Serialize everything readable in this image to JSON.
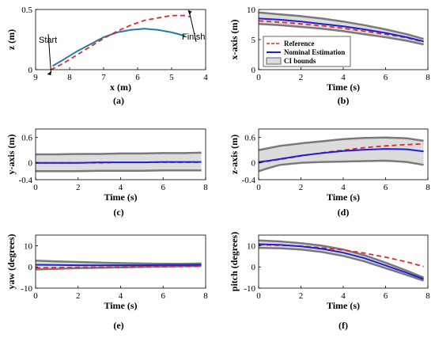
{
  "colors": {
    "reference": "#e8242c",
    "nominal": "#1f1fd6",
    "trajectory": "#1a7fa6",
    "ci_fill": "#dcdcdc",
    "ci_edge": "#7a7a7a"
  },
  "chart_data": [
    {
      "id": "a",
      "type": "line",
      "caption": "(a)",
      "xlabel": "x (m)",
      "ylabel": "z (m)",
      "xlim": [
        9,
        4
      ],
      "ylim": [
        0,
        0.5
      ],
      "xticks": [
        9,
        8,
        7,
        6,
        5,
        4
      ],
      "yticks": [
        0,
        0.5
      ],
      "annotations": [
        {
          "text": "Start",
          "x": 8.5,
          "y": 0.0
        },
        {
          "text": "Finish",
          "x": 4.5,
          "y": 0.45
        }
      ],
      "series": [
        {
          "role": "trajectory",
          "style": "solid",
          "x": [
            8.5,
            8.2,
            7.8,
            7.4,
            7.0,
            6.6,
            6.2,
            5.8,
            5.4,
            5.0,
            4.6
          ],
          "y": [
            0.03,
            0.08,
            0.15,
            0.21,
            0.27,
            0.31,
            0.33,
            0.34,
            0.33,
            0.31,
            0.28
          ]
        },
        {
          "role": "reference",
          "style": "dashed",
          "x": [
            8.55,
            8.2,
            7.8,
            7.4,
            7.0,
            6.6,
            6.2,
            5.8,
            5.4,
            5.0,
            4.6,
            4.45
          ],
          "y": [
            0.0,
            0.05,
            0.12,
            0.19,
            0.26,
            0.32,
            0.37,
            0.41,
            0.43,
            0.45,
            0.45,
            0.44
          ]
        }
      ]
    },
    {
      "id": "b",
      "type": "line",
      "caption": "(b)",
      "xlabel": "Time (s)",
      "ylabel": "x-axis (m)",
      "xlim": [
        0,
        8
      ],
      "ylim": [
        0,
        10
      ],
      "xticks": [
        0,
        2,
        4,
        6,
        8
      ],
      "yticks": [
        0,
        5,
        10
      ],
      "legend": {
        "placement": "bottom-left",
        "entries": [
          "Reference",
          "Nominal Estimation",
          "CI bounds"
        ]
      },
      "x": [
        0,
        1,
        2,
        3,
        4,
        5,
        6,
        7,
        7.8
      ],
      "series": [
        {
          "name": "CI bounds",
          "role": "ci",
          "upper": [
            9.5,
            9.2,
            8.9,
            8.5,
            8.0,
            7.4,
            6.7,
            5.9,
            5.1
          ],
          "lower": [
            7.6,
            7.4,
            7.1,
            6.8,
            6.4,
            5.9,
            5.4,
            4.8,
            4.2
          ]
        },
        {
          "name": "Reference",
          "role": "reference",
          "style": "dashed",
          "values": [
            8.1,
            7.9,
            7.6,
            7.3,
            6.9,
            6.4,
            5.9,
            5.3,
            4.6
          ]
        },
        {
          "name": "Nominal Estimation",
          "role": "nominal",
          "style": "solid",
          "values": [
            8.5,
            8.3,
            8.0,
            7.6,
            7.2,
            6.7,
            6.1,
            5.4,
            4.7
          ]
        }
      ]
    },
    {
      "id": "c",
      "type": "line",
      "caption": "(c)",
      "xlabel": "Time (s)",
      "ylabel": "y-axis (m)",
      "xlim": [
        0,
        8
      ],
      "ylim": [
        -0.4,
        0.8
      ],
      "xticks": [
        0,
        2,
        4,
        6,
        8
      ],
      "yticks": [
        -0.4,
        0,
        0.6
      ],
      "x": [
        0,
        1,
        2,
        3,
        4,
        5,
        6,
        7,
        7.8
      ],
      "series": [
        {
          "role": "ci",
          "upper": [
            0.2,
            0.2,
            0.21,
            0.21,
            0.22,
            0.22,
            0.23,
            0.23,
            0.24
          ],
          "lower": [
            -0.2,
            -0.2,
            -0.2,
            -0.19,
            -0.19,
            -0.19,
            -0.18,
            -0.18,
            -0.18
          ]
        },
        {
          "role": "reference",
          "style": "dashed",
          "values": [
            0.0,
            0.0,
            0.0,
            0.0,
            0.01,
            0.01,
            0.01,
            0.01,
            0.01
          ]
        },
        {
          "role": "nominal",
          "style": "solid",
          "values": [
            0.0,
            0.0,
            0.0,
            0.01,
            0.01,
            0.01,
            0.02,
            0.02,
            0.02
          ]
        }
      ]
    },
    {
      "id": "d",
      "type": "line",
      "caption": "(d)",
      "xlabel": "Time (s)",
      "ylabel": "z-axis (m)",
      "xlim": [
        0,
        8
      ],
      "ylim": [
        -0.4,
        0.8
      ],
      "xticks": [
        0,
        2,
        4,
        6,
        8
      ],
      "yticks": [
        -0.4,
        0,
        0.6
      ],
      "x": [
        0,
        0.5,
        1,
        2,
        3,
        4,
        5,
        6,
        7,
        7.8
      ],
      "series": [
        {
          "role": "ci",
          "upper": [
            0.3,
            0.35,
            0.4,
            0.46,
            0.51,
            0.56,
            0.59,
            0.6,
            0.58,
            0.52
          ],
          "lower": [
            -0.2,
            -0.12,
            -0.05,
            0.0,
            0.02,
            0.03,
            0.04,
            0.05,
            0.02,
            -0.05
          ]
        },
        {
          "role": "reference",
          "style": "dashed",
          "values": [
            0.0,
            0.04,
            0.08,
            0.16,
            0.24,
            0.3,
            0.36,
            0.4,
            0.43,
            0.45
          ]
        },
        {
          "role": "nominal",
          "style": "solid",
          "values": [
            0.02,
            0.05,
            0.09,
            0.17,
            0.23,
            0.28,
            0.31,
            0.33,
            0.32,
            0.27
          ]
        }
      ]
    },
    {
      "id": "e",
      "type": "line",
      "caption": "(e)",
      "xlabel": "Time (s)",
      "ylabel": "yaw (degrees)",
      "xlim": [
        0,
        8
      ],
      "ylim": [
        -10,
        15
      ],
      "xticks": [
        0,
        2,
        4,
        6,
        8
      ],
      "yticks": [
        -10,
        0,
        10
      ],
      "x": [
        0,
        1,
        2,
        3,
        4,
        5,
        6,
        7,
        7.8
      ],
      "series": [
        {
          "role": "ci",
          "upper": [
            3.0,
            2.6,
            2.3,
            2.0,
            1.8,
            1.6,
            1.5,
            1.5,
            1.6
          ],
          "lower": [
            -1.2,
            -0.9,
            -0.6,
            -0.4,
            -0.2,
            0.0,
            0.2,
            0.3,
            0.4
          ]
        },
        {
          "role": "reference",
          "style": "dashed",
          "values": [
            -0.5,
            -0.3,
            -0.2,
            -0.1,
            0.0,
            0.1,
            0.2,
            0.3,
            0.4
          ]
        },
        {
          "role": "nominal",
          "style": "solid",
          "values": [
            1.0,
            0.9,
            0.8,
            0.8,
            0.8,
            0.8,
            0.9,
            0.9,
            1.0
          ]
        }
      ]
    },
    {
      "id": "f",
      "type": "line",
      "caption": "(f)",
      "xlabel": "Time (s)",
      "ylabel": "pitch (degrees)",
      "xlim": [
        0,
        8
      ],
      "ylim": [
        -10,
        15
      ],
      "xticks": [
        0,
        2,
        4,
        6,
        8
      ],
      "yticks": [
        -10,
        0,
        10
      ],
      "x": [
        0,
        1,
        2,
        3,
        4,
        5,
        6,
        7,
        7.8
      ],
      "series": [
        {
          "role": "ci",
          "upper": [
            12.5,
            12.0,
            11.2,
            10.0,
            8.2,
            5.5,
            2.0,
            -1.8,
            -5.0
          ],
          "lower": [
            9.0,
            8.8,
            8.2,
            7.0,
            5.2,
            2.6,
            -0.6,
            -3.8,
            -6.5
          ]
        },
        {
          "role": "reference",
          "style": "dashed",
          "values": [
            10.5,
            10.2,
            9.8,
            9.0,
            8.0,
            6.5,
            4.6,
            2.4,
            0.2
          ]
        },
        {
          "role": "nominal",
          "style": "solid",
          "values": [
            10.7,
            10.4,
            9.7,
            8.5,
            6.7,
            4.1,
            0.7,
            -2.8,
            -5.7
          ]
        }
      ]
    }
  ]
}
